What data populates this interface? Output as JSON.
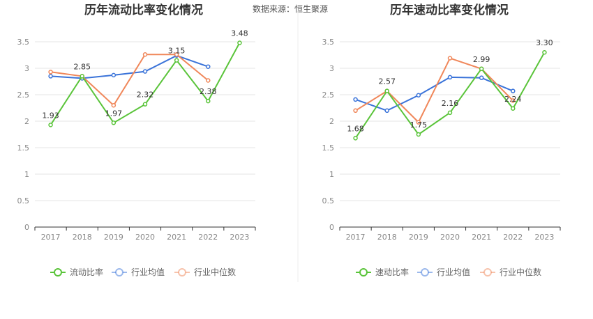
{
  "source_label": "数据来源：恒生聚源",
  "chart_data": [
    {
      "type": "line",
      "title": "历年流动比率变化情况",
      "categories": [
        "2017",
        "2018",
        "2019",
        "2020",
        "2021",
        "2022",
        "2023"
      ],
      "ylim": [
        0,
        3.5
      ],
      "yticks": [
        "0",
        "0.5",
        "1",
        "1.5",
        "2",
        "2.5",
        "3",
        "3.5"
      ],
      "grid": true,
      "legend_position": "bottom",
      "series": [
        {
          "name": "流动比率",
          "color": "#5ac43a",
          "values": [
            1.93,
            2.85,
            1.97,
            2.32,
            3.15,
            2.38,
            3.48
          ],
          "labels": [
            "1.93",
            "2.85",
            "1.97",
            "2.32",
            "3.15",
            "2.38",
            "3.48"
          ]
        },
        {
          "name": "行业均值",
          "color": "#3a73d9",
          "values": [
            2.85,
            2.81,
            2.87,
            2.94,
            3.24,
            3.03,
            null
          ]
        },
        {
          "name": "行业中位数",
          "color": "#f0875a",
          "values": [
            2.93,
            2.85,
            2.3,
            3.26,
            3.26,
            2.77,
            null
          ]
        }
      ]
    },
    {
      "type": "line",
      "title": "历年速动比率变化情况",
      "categories": [
        "2017",
        "2018",
        "2019",
        "2020",
        "2021",
        "2022",
        "2023"
      ],
      "ylim": [
        0,
        3.5
      ],
      "yticks": [
        "0",
        "0.5",
        "1",
        "1.5",
        "2",
        "2.5",
        "3",
        "3.5"
      ],
      "grid": true,
      "legend_position": "bottom",
      "series": [
        {
          "name": "速动比率",
          "color": "#5ac43a",
          "values": [
            1.68,
            2.57,
            1.75,
            2.16,
            2.99,
            2.24,
            3.3
          ],
          "labels": [
            "1.68",
            "2.57",
            "1.75",
            "2.16",
            "2.99",
            "2.24",
            "3.30"
          ]
        },
        {
          "name": "行业均值",
          "color": "#3a73d9",
          "values": [
            2.41,
            2.2,
            2.49,
            2.83,
            2.82,
            2.57,
            null
          ]
        },
        {
          "name": "行业中位数",
          "color": "#f0875a",
          "values": [
            2.2,
            2.57,
            1.98,
            3.19,
            2.99,
            2.39,
            null
          ]
        }
      ]
    }
  ]
}
